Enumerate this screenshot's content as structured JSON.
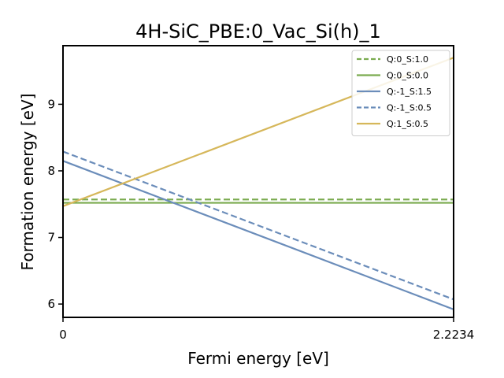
{
  "chart_data": {
    "type": "line",
    "title": "4H-SiC_PBE:0_Vac_Si(h)_1",
    "xlabel": "Fermi energy [eV]",
    "ylabel": "Formation energy [eV]",
    "xlim": [
      0,
      2.2234
    ],
    "ylim": [
      5.8,
      9.88
    ],
    "x_ticks": [
      0,
      2.2234
    ],
    "x_tick_labels": [
      "0",
      "2.2234"
    ],
    "y_ticks": [
      6,
      7,
      8,
      9
    ],
    "y_tick_labels": [
      "6",
      "7",
      "8",
      "9"
    ],
    "legend_position": "top-right",
    "series": [
      {
        "name": "Q:0_S:1.0",
        "color": "#7aab4f",
        "dash": "dashed",
        "x": [
          0,
          2.2234
        ],
        "y": [
          7.57,
          7.57
        ]
      },
      {
        "name": "Q:0_S:0.0",
        "color": "#7aab4f",
        "dash": "solid",
        "x": [
          0,
          2.2234
        ],
        "y": [
          7.52,
          7.52
        ]
      },
      {
        "name": "Q:-1_S:1.5",
        "color": "#6b8dba",
        "dash": "solid",
        "x": [
          0,
          2.2234
        ],
        "y": [
          8.15,
          5.92
        ]
      },
      {
        "name": "Q:-1_S:0.5",
        "color": "#6b8dba",
        "dash": "dashed",
        "x": [
          0,
          2.2234
        ],
        "y": [
          8.29,
          6.07
        ]
      },
      {
        "name": "Q:1_S:0.5",
        "color": "#d6b75a",
        "dash": "solid",
        "x": [
          0,
          2.2234
        ],
        "y": [
          7.47,
          9.7
        ]
      }
    ]
  }
}
